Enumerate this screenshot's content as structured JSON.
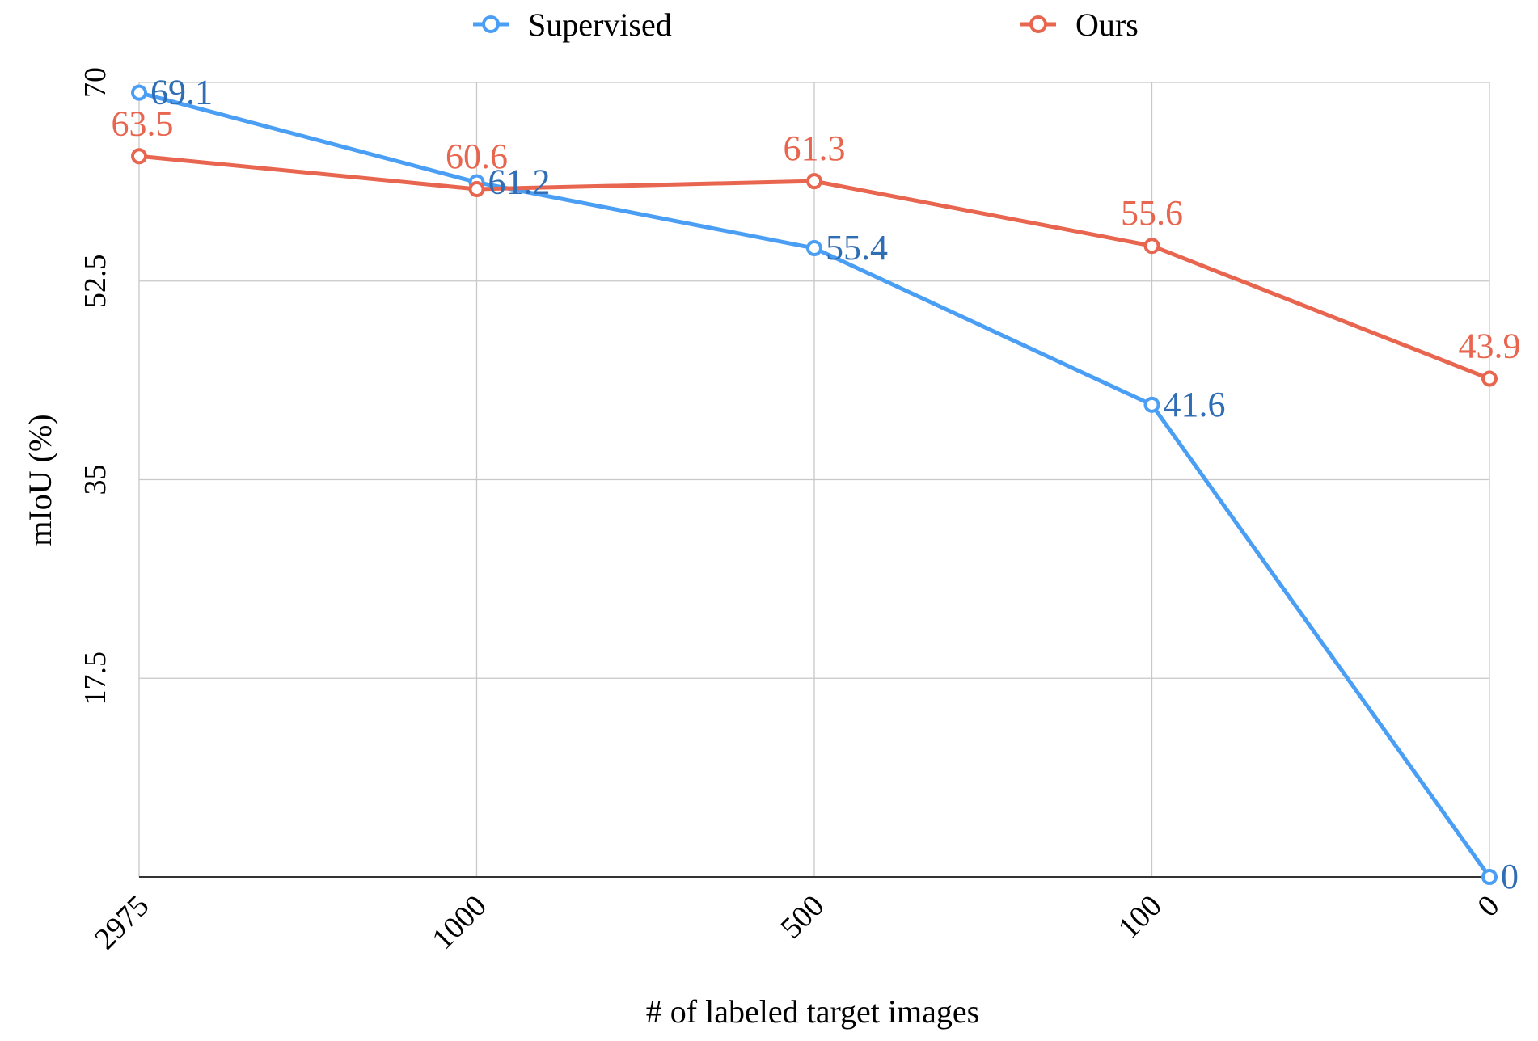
{
  "chart_data": {
    "type": "line",
    "title": "",
    "xlabel": "# of labeled target images",
    "ylabel": "mIoU (%)",
    "categories": [
      "2975",
      "1000",
      "500",
      "100",
      "0"
    ],
    "ylim": [
      0,
      70
    ],
    "yticks": [
      "17.5",
      "35",
      "52.5",
      "70"
    ],
    "grid": true,
    "legend_position": "top",
    "series": [
      {
        "name": "Supervised",
        "color": "#4a9ff5",
        "label_color": "#2f6db5",
        "values": [
          69.1,
          61.2,
          55.4,
          41.6,
          0
        ],
        "labels": [
          "69.1",
          "61.2",
          "55.4",
          "41.6",
          "0"
        ]
      },
      {
        "name": "Ours",
        "color": "#e8664f",
        "label_color": "#e8664f",
        "values": [
          63.5,
          60.6,
          61.3,
          55.6,
          43.9
        ],
        "labels": [
          "63.5",
          "60.6",
          "61.3",
          "55.6",
          "43.9"
        ]
      }
    ]
  }
}
